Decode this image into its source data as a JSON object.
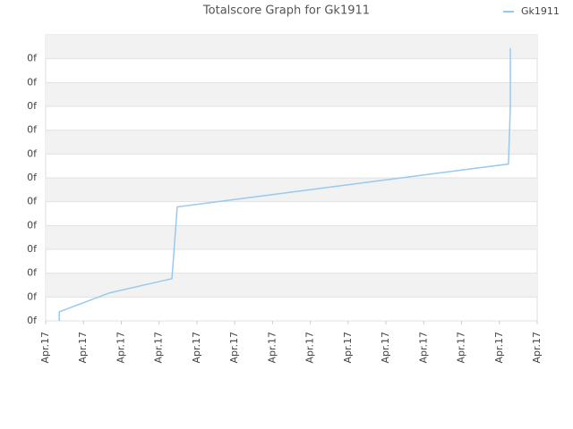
{
  "chart_data": {
    "type": "line",
    "title": "Totalscore Graph for Gk1911",
    "x": [
      0.36,
      0.36,
      1.68,
      3.34,
      3.48,
      12.24,
      12.29,
      12.29
    ],
    "series": [
      {
        "name": "Gk1911",
        "color": "#99c9ee",
        "values": [
          0,
          0.38,
          1.17,
          1.77,
          4.78,
          6.58,
          8.99,
          11.44
        ]
      }
    ],
    "xlim": [
      0,
      13
    ],
    "xticks": [
      {
        "value": 0,
        "label": "Apr.17"
      },
      {
        "value": 1,
        "label": "Apr.17"
      },
      {
        "value": 2,
        "label": "Apr.17"
      },
      {
        "value": 3,
        "label": "Apr.17"
      },
      {
        "value": 4,
        "label": "Apr.17"
      },
      {
        "value": 5,
        "label": "Apr.17"
      },
      {
        "value": 6,
        "label": "Apr.17"
      },
      {
        "value": 7,
        "label": "Apr.17"
      },
      {
        "value": 8,
        "label": "Apr.17"
      },
      {
        "value": 9,
        "label": "Apr.17"
      },
      {
        "value": 10,
        "label": "Apr.17"
      },
      {
        "value": 11,
        "label": "Apr.17"
      },
      {
        "value": 12,
        "label": "Apr.17"
      },
      {
        "value": 13,
        "label": "Apr.17"
      }
    ],
    "ylim": [
      0,
      12
    ],
    "yticks": [
      {
        "value": 0,
        "label": "0f"
      },
      {
        "value": 1,
        "label": "0f"
      },
      {
        "value": 2,
        "label": "0f"
      },
      {
        "value": 3,
        "label": "0f"
      },
      {
        "value": 4,
        "label": "0f"
      },
      {
        "value": 5,
        "label": "0f"
      },
      {
        "value": 6,
        "label": "0f"
      },
      {
        "value": 7,
        "label": "0f"
      },
      {
        "value": 8,
        "label": "0f"
      },
      {
        "value": 9,
        "label": "0f"
      },
      {
        "value": 10,
        "label": "0f"
      },
      {
        "value": 11,
        "label": "0f"
      }
    ],
    "grid": true,
    "legend": "top-right"
  }
}
